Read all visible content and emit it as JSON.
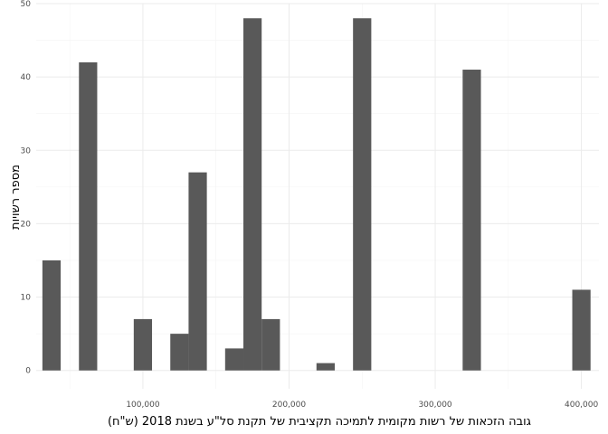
{
  "chart_data": {
    "type": "bar",
    "subtype": "histogram",
    "xlabel": "גובה הזכאות של רשות מקומית לתמיכה תקציבית של תקנת סל\"ע בשנת 2018 (ש\"ח)",
    "ylabel": "מספר רשויות",
    "xlim": [
      27000,
      412000
    ],
    "ylim": [
      -2.5,
      50
    ],
    "bin_width": 12500,
    "x_ticks": [
      100000,
      200000,
      300000,
      400000
    ],
    "x_tick_labels": [
      "100,000",
      "200,000",
      "300,000",
      "400,000"
    ],
    "x_minor_ticks": [
      50000,
      150000,
      250000,
      350000
    ],
    "y_ticks": [
      0,
      10,
      20,
      30,
      40,
      50
    ],
    "y_tick_labels": [
      "0",
      "10",
      "20",
      "30",
      "40",
      "50"
    ],
    "y_minor_ticks": [
      5,
      15,
      25,
      35,
      45
    ],
    "grid": true,
    "bar_color": "#595959",
    "bins": [
      {
        "x": 37500,
        "count": 15
      },
      {
        "x": 62500,
        "count": 42
      },
      {
        "x": 100000,
        "count": 7
      },
      {
        "x": 125000,
        "count": 5
      },
      {
        "x": 137500,
        "count": 27
      },
      {
        "x": 162500,
        "count": 3
      },
      {
        "x": 175000,
        "count": 48
      },
      {
        "x": 187500,
        "count": 7
      },
      {
        "x": 225000,
        "count": 1
      },
      {
        "x": 250000,
        "count": 48
      },
      {
        "x": 325000,
        "count": 41
      },
      {
        "x": 400000,
        "count": 11
      }
    ]
  }
}
